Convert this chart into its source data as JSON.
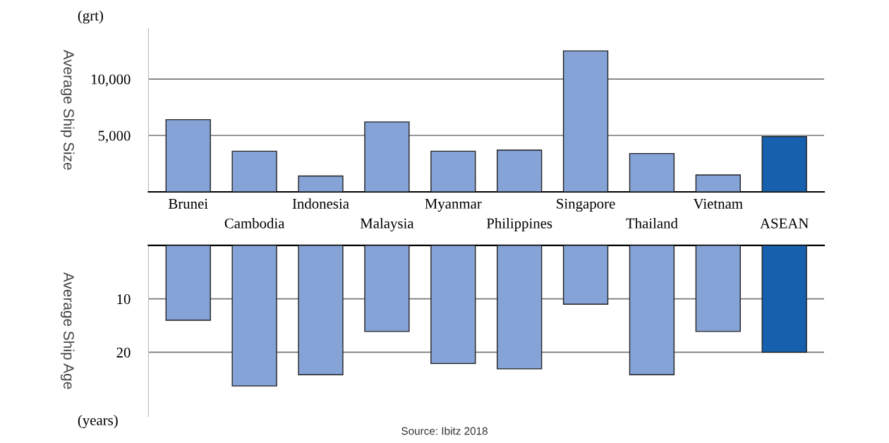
{
  "chart_data": [
    {
      "type": "bar",
      "ylabel": "Average Ship Size",
      "annotations": [
        "(grt)"
      ],
      "categories": [
        "Brunei",
        "Cambodia",
        "Indonesia",
        "Malaysia",
        "Myanmar",
        "Philippines",
        "Singapore",
        "Thailand",
        "Vietnam",
        "ASEAN"
      ],
      "values": [
        6400,
        3600,
        1400,
        6200,
        3600,
        3700,
        12500,
        3400,
        1500,
        4900
      ],
      "colors": [
        "#85a3d6",
        "#85a3d6",
        "#85a3d6",
        "#85a3d6",
        "#85a3d6",
        "#85a3d6",
        "#85a3d6",
        "#85a3d6",
        "#85a3d6",
        "#1660ad"
      ],
      "ylim": [
        0,
        14500
      ],
      "yticks": [
        {
          "value": 5000,
          "label": "5,000"
        },
        {
          "value": 10000,
          "label": "10,000"
        }
      ],
      "grid": "y"
    },
    {
      "type": "bar",
      "ylabel": "Average Ship Age",
      "annotations": [
        "(years)",
        "Source: Ibitz 2018"
      ],
      "categories": [
        null,
        null,
        null,
        null,
        null,
        null,
        null,
        null,
        null,
        null
      ],
      "values": [
        14,
        26.3,
        24.2,
        16.1,
        22.1,
        23.1,
        11,
        24.2,
        16.1,
        20
      ],
      "colors": [
        "#85a3d6",
        "#85a3d6",
        "#85a3d6",
        "#85a3d6",
        "#85a3d6",
        "#85a3d6",
        "#85a3d6",
        "#85a3d6",
        "#85a3d6",
        "#1660ad"
      ],
      "ylim": [
        32,
        0
      ],
      "yticks": [
        10,
        20
      ],
      "grid": "y",
      "tick_labels": "y"
    }
  ]
}
